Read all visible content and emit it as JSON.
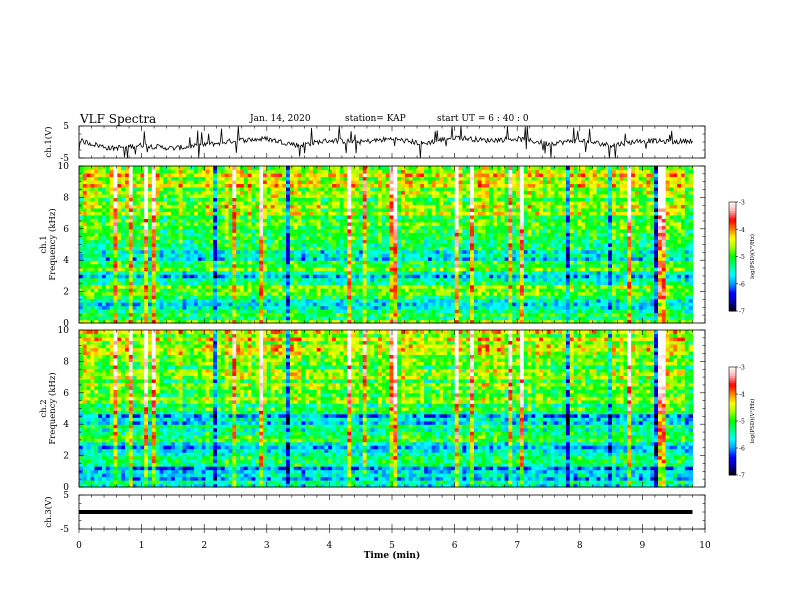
{
  "header": {
    "title": "VLF Spectra",
    "date": "Jan. 14, 2020",
    "station": "station= KAP",
    "start_ut": "start UT =  6 : 40 : 0"
  },
  "chart_data": [
    {
      "type": "line",
      "name": "ch1-waveform",
      "ylabel": "ch.1(V)",
      "ylim": [
        -5,
        5
      ],
      "y_ticks": [
        -5,
        5
      ],
      "xlim": [
        0,
        10
      ],
      "x_ticks": [
        0,
        1,
        2,
        3,
        4,
        5,
        6,
        7,
        8,
        9,
        10
      ],
      "x_data_range": [
        0,
        9.8
      ],
      "approx_levels": [
        {
          "x": 0.0,
          "y": 0.5
        },
        {
          "x": 0.5,
          "y": -2.0
        },
        {
          "x": 1.0,
          "y": -1.0
        },
        {
          "x": 1.5,
          "y": -2.0
        },
        {
          "x": 2.0,
          "y": -1.0
        },
        {
          "x": 2.5,
          "y": 0.5
        },
        {
          "x": 3.0,
          "y": 1.0
        },
        {
          "x": 3.5,
          "y": -1.0
        },
        {
          "x": 4.0,
          "y": 0.5
        },
        {
          "x": 4.5,
          "y": 0.0
        },
        {
          "x": 5.0,
          "y": 1.0
        },
        {
          "x": 5.5,
          "y": -0.5
        },
        {
          "x": 6.0,
          "y": 1.5
        },
        {
          "x": 6.5,
          "y": 0.5
        },
        {
          "x": 7.0,
          "y": 1.0
        },
        {
          "x": 7.5,
          "y": -0.5
        },
        {
          "x": 8.0,
          "y": 0.5
        },
        {
          "x": 8.5,
          "y": -1.0
        },
        {
          "x": 9.0,
          "y": 0.5
        },
        {
          "x": 9.5,
          "y": 0.0
        },
        {
          "x": 9.8,
          "y": 0.5
        }
      ]
    },
    {
      "type": "heatmap",
      "name": "ch1-spectrogram",
      "ylabel": "ch.1 Frequency (kHz)",
      "ylim": [
        0,
        10
      ],
      "y_ticks": [
        0,
        2,
        4,
        6,
        8,
        10
      ],
      "xlim": [
        0,
        10
      ],
      "x_ticks": [
        0,
        1,
        2,
        3,
        4,
        5,
        6,
        7,
        8,
        9,
        10
      ],
      "x_data_range": [
        0,
        9.8
      ],
      "colorbar": {
        "label": "log(PSD)(V²/Hz)",
        "range": [
          -7,
          -3
        ],
        "ticks": [
          -3,
          -4,
          -5,
          -6,
          -7
        ]
      },
      "colormap": [
        "#000000",
        "#0000b0",
        "#0000ff",
        "#00a0ff",
        "#00ffff",
        "#00ff80",
        "#00ff00",
        "#a0ff00",
        "#ffff00",
        "#ff8000",
        "#ff0000",
        "#ffb0b0",
        "#ffffff"
      ],
      "approx_level_by_freq_khz": [
        {
          "f": 0.5,
          "log_psd": -5.0
        },
        {
          "f": 1.0,
          "log_psd": -5.5
        },
        {
          "f": 1.5,
          "log_psd": -5.5
        },
        {
          "f": 2.0,
          "log_psd": -5.0
        },
        {
          "f": 2.5,
          "log_psd": -5.0
        },
        {
          "f": 3.0,
          "log_psd": -6.0
        },
        {
          "f": 3.5,
          "log_psd": -5.0
        },
        {
          "f": 4.0,
          "log_psd": -5.5
        },
        {
          "f": 4.5,
          "log_psd": -6.0
        },
        {
          "f": 5.0,
          "log_psd": -5.0
        },
        {
          "f": 6.0,
          "log_psd": -5.0
        },
        {
          "f": 7.0,
          "log_psd": -4.8
        },
        {
          "f": 8.0,
          "log_psd": -4.8
        },
        {
          "f": 9.0,
          "log_psd": -4.5
        },
        {
          "f": 10.0,
          "log_psd": -4.5
        }
      ]
    },
    {
      "type": "heatmap",
      "name": "ch2-spectrogram",
      "ylabel": "ch.2 Frequency (kHz)",
      "ylim": [
        0,
        10
      ],
      "y_ticks": [
        0,
        2,
        4,
        6,
        8,
        10
      ],
      "xlim": [
        0,
        10
      ],
      "x_ticks": [
        0,
        1,
        2,
        3,
        4,
        5,
        6,
        7,
        8,
        9,
        10
      ],
      "x_data_range": [
        0,
        9.8
      ],
      "colorbar": {
        "label": "log(PSD)(V²/Hz)",
        "range": [
          -7,
          -3
        ],
        "ticks": [
          -3,
          -4,
          -5,
          -6,
          -7
        ]
      },
      "colormap": [
        "#000000",
        "#0000b0",
        "#0000ff",
        "#00a0ff",
        "#00ffff",
        "#00ff80",
        "#00ff00",
        "#a0ff00",
        "#ffff00",
        "#ff8000",
        "#ff0000",
        "#ffb0b0",
        "#ffffff"
      ],
      "approx_level_by_freq_khz": [
        {
          "f": 0.5,
          "log_psd": -5.5
        },
        {
          "f": 1.0,
          "log_psd": -6.0
        },
        {
          "f": 1.5,
          "log_psd": -5.5
        },
        {
          "f": 2.0,
          "log_psd": -5.0
        },
        {
          "f": 2.5,
          "log_psd": -6.0
        },
        {
          "f": 3.0,
          "log_psd": -5.0
        },
        {
          "f": 3.5,
          "log_psd": -5.5
        },
        {
          "f": 4.0,
          "log_psd": -5.5
        },
        {
          "f": 4.5,
          "log_psd": -6.0
        },
        {
          "f": 5.0,
          "log_psd": -5.0
        },
        {
          "f": 6.0,
          "log_psd": -5.0
        },
        {
          "f": 7.0,
          "log_psd": -4.8
        },
        {
          "f": 8.0,
          "log_psd": -4.8
        },
        {
          "f": 9.0,
          "log_psd": -4.5
        },
        {
          "f": 10.0,
          "log_psd": -4.5
        }
      ]
    },
    {
      "type": "line",
      "name": "ch3-waveform",
      "ylabel": "ch.3(V)",
      "xlabel": "Time (min)",
      "ylim": [
        -5,
        5
      ],
      "y_ticks": [
        -5,
        5
      ],
      "xlim": [
        0,
        10
      ],
      "x_ticks": [
        0,
        1,
        2,
        3,
        4,
        5,
        6,
        7,
        8,
        9,
        10
      ],
      "series": [
        {
          "x": [
            0,
            9.8
          ],
          "y": [
            0,
            0
          ]
        }
      ]
    }
  ]
}
